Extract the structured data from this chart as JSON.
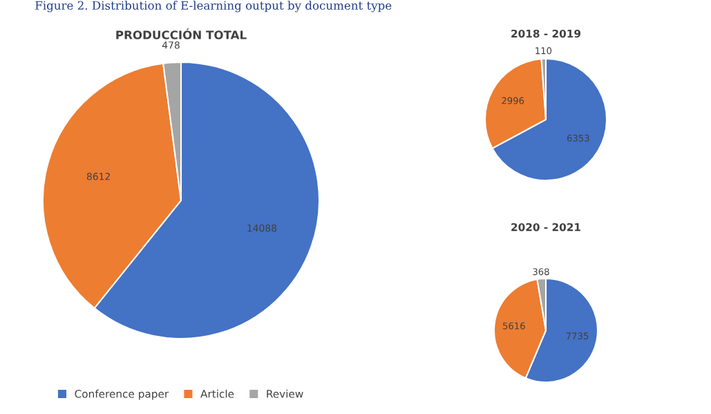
{
  "chart_data": [
    {
      "type": "pie",
      "title": "PRODUCCIÓN TOTAL",
      "annotations": [
        "Figure 2. Distribution of E-learning output by document type"
      ],
      "categories": [
        "Conference paper",
        "Article",
        "Review"
      ],
      "values": [
        14088,
        8612,
        478
      ],
      "colors": [
        "#4472c4",
        "#ed7d31",
        "#a5a5a5"
      ],
      "data_labels": true,
      "legend": "bottom"
    },
    {
      "type": "pie",
      "title": "2018 - 2019",
      "categories": [
        null,
        null,
        null
      ],
      "values": [
        6353,
        2996,
        110
      ],
      "colors": [
        "#4472c4",
        "#ed7d31",
        "#a5a5a5"
      ],
      "data_labels": true
    },
    {
      "type": "pie",
      "title": "2020 - 2021",
      "categories": [
        null,
        null,
        null
      ],
      "values": [
        7735,
        5616,
        368
      ],
      "colors": [
        "#4472c4",
        "#ed7d31",
        "#a5a5a5"
      ],
      "data_labels": true
    }
  ]
}
